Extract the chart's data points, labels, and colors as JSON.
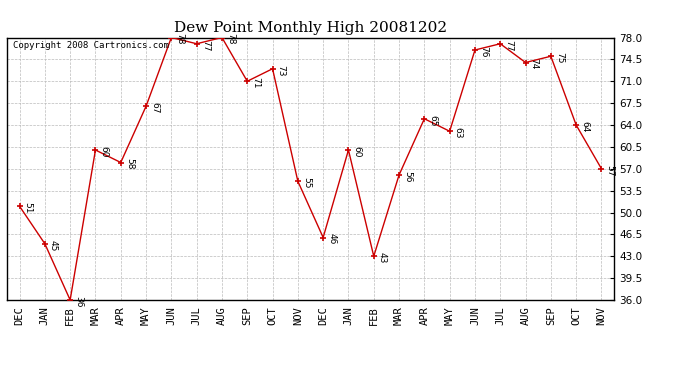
{
  "title": "Dew Point Monthly High 20081202",
  "copyright": "Copyright 2008 Cartronics.com",
  "months": [
    "DEC",
    "JAN",
    "FEB",
    "MAR",
    "APR",
    "MAY",
    "JUN",
    "JUL",
    "AUG",
    "SEP",
    "OCT",
    "NOV",
    "DEC",
    "JAN",
    "FEB",
    "MAR",
    "APR",
    "MAY",
    "JUN",
    "JUL",
    "AUG",
    "SEP",
    "OCT",
    "NOV"
  ],
  "values": [
    51,
    45,
    36,
    60,
    58,
    67,
    78,
    77,
    78,
    71,
    73,
    55,
    46,
    60,
    43,
    56,
    65,
    63,
    76,
    77,
    74,
    75,
    64,
    57
  ],
  "line_color": "#cc0000",
  "marker_color": "#cc0000",
  "background_color": "#ffffff",
  "grid_color": "#bbbbbb",
  "ylim_min": 36.0,
  "ylim_max": 78.0,
  "yticks": [
    36.0,
    39.5,
    43.0,
    46.5,
    50.0,
    53.5,
    57.0,
    60.5,
    64.0,
    67.5,
    71.0,
    74.5,
    78.0
  ],
  "title_fontsize": 11,
  "copyright_fontsize": 6.5,
  "label_fontsize": 6.5,
  "tick_fontsize": 7.5
}
